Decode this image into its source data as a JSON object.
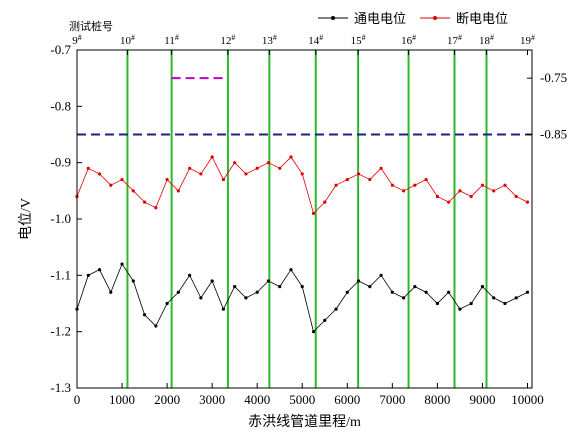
{
  "chart_data": {
    "type": "line",
    "title": "",
    "xlabel": "赤洪线管道里程/m",
    "ylabel": "电位/V",
    "xlim": [
      0,
      10100
    ],
    "ylim": [
      -1.3,
      -0.7
    ],
    "x_ticks": [
      0,
      1000,
      2000,
      3000,
      4000,
      5000,
      6000,
      7000,
      8000,
      9000,
      10000
    ],
    "y_ticks": [
      -1.3,
      -1.2,
      -1.1,
      -1.0,
      -0.9,
      -0.8,
      -0.7
    ],
    "y_tick_labels": [
      "-1.3",
      "-1.2",
      "-1.1",
      "-1.0",
      "-0.9",
      "-0.8",
      "-0.7"
    ],
    "right_ticks": [
      -0.75,
      -0.85
    ],
    "right_tick_labels": [
      "-0.75",
      "-0.85"
    ],
    "legend_position": "top-right",
    "top_axis_label": "测试桩号",
    "stations": [
      {
        "label": "9",
        "sup": "#",
        "x": 0
      },
      {
        "label": "10",
        "sup": "#",
        "x": 1120
      },
      {
        "label": "11",
        "sup": "#",
        "x": 2100
      },
      {
        "label": "12",
        "sup": "#",
        "x": 3350
      },
      {
        "label": "13",
        "sup": "#",
        "x": 4270
      },
      {
        "label": "14",
        "sup": "#",
        "x": 5300
      },
      {
        "label": "15",
        "sup": "#",
        "x": 6240
      },
      {
        "label": "16",
        "sup": "#",
        "x": 7360
      },
      {
        "label": "17",
        "sup": "#",
        "x": 8380
      },
      {
        "label": "18",
        "sup": "#",
        "x": 9090
      },
      {
        "label": "19",
        "sup": "#",
        "x": 10000
      }
    ],
    "reference_lines": [
      {
        "value": -0.85,
        "x_range": [
          0,
          10100
        ],
        "color": "#1a237e",
        "style": "dashed"
      },
      {
        "value": -0.75,
        "x_range": [
          2100,
          3350
        ],
        "color": "#c000c0",
        "style": "dashed"
      }
    ],
    "series": [
      {
        "name": "通电电位",
        "color": "#000000",
        "x": [
          0,
          250,
          500,
          750,
          1000,
          1250,
          1500,
          1750,
          2000,
          2250,
          2500,
          2750,
          3000,
          3250,
          3500,
          3750,
          4000,
          4250,
          4500,
          4750,
          5000,
          5250,
          5500,
          5750,
          6000,
          6250,
          6500,
          6750,
          7000,
          7250,
          7500,
          7750,
          8000,
          8250,
          8500,
          8750,
          9000,
          9250,
          9500,
          9750,
          10000
        ],
        "y": [
          -1.16,
          -1.1,
          -1.09,
          -1.13,
          -1.08,
          -1.11,
          -1.17,
          -1.19,
          -1.15,
          -1.13,
          -1.1,
          -1.14,
          -1.11,
          -1.16,
          -1.12,
          -1.14,
          -1.13,
          -1.11,
          -1.12,
          -1.09,
          -1.12,
          -1.2,
          -1.18,
          -1.16,
          -1.13,
          -1.11,
          -1.12,
          -1.1,
          -1.13,
          -1.14,
          -1.12,
          -1.13,
          -1.15,
          -1.13,
          -1.16,
          -1.15,
          -1.12,
          -1.14,
          -1.15,
          -1.14,
          -1.13
        ]
      },
      {
        "name": "断电电位",
        "color": "#e00000",
        "x": [
          0,
          250,
          500,
          750,
          1000,
          1250,
          1500,
          1750,
          2000,
          2250,
          2500,
          2750,
          3000,
          3250,
          3500,
          3750,
          4000,
          4250,
          4500,
          4750,
          5000,
          5250,
          5500,
          5750,
          6000,
          6250,
          6500,
          6750,
          7000,
          7250,
          7500,
          7750,
          8000,
          8250,
          8500,
          8750,
          9000,
          9250,
          9500,
          9750,
          10000
        ],
        "y": [
          -0.96,
          -0.91,
          -0.92,
          -0.94,
          -0.93,
          -0.95,
          -0.97,
          -0.98,
          -0.93,
          -0.95,
          -0.91,
          -0.92,
          -0.89,
          -0.93,
          -0.9,
          -0.92,
          -0.91,
          -0.9,
          -0.91,
          -0.89,
          -0.92,
          -0.99,
          -0.97,
          -0.94,
          -0.93,
          -0.92,
          -0.93,
          -0.91,
          -0.94,
          -0.95,
          -0.94,
          -0.93,
          -0.96,
          -0.97,
          -0.95,
          -0.96,
          -0.94,
          -0.95,
          -0.94,
          -0.96,
          -0.97
        ]
      }
    ]
  }
}
